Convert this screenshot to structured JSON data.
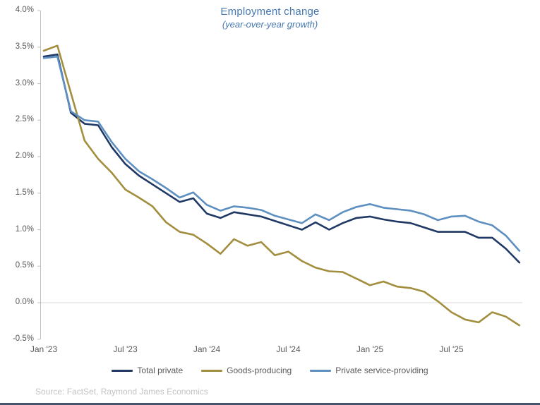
{
  "title": {
    "text": "Employment change",
    "subtitle": "(year-over-year growth)",
    "color": "#4679b2"
  },
  "source": "Source: FactSet, Raymond James Economics",
  "colors": {
    "axis_line": "#bfbfbf",
    "zero_gridline": "#d9d9d9",
    "tick_text": "#595959",
    "legend_text": "#595959",
    "source_text": "#c3c3c3",
    "bottom_bar": "#44546a"
  },
  "chart_data": {
    "type": "line",
    "title": "Employment change",
    "subtitle": "(year-over-year growth)",
    "ylabel": "",
    "xlabel": "",
    "ylim": [
      -0.5,
      4.0
    ],
    "y_tick_step": 0.5,
    "y_tick_labels": [
      "4.0%",
      "3.5%",
      "3.0%",
      "2.5%",
      "2.0%",
      "1.5%",
      "1.0%",
      "0.5%",
      "0.0%",
      "-0.5%"
    ],
    "x_axis_labels": [
      {
        "label": "Jan '23",
        "index": 0
      },
      {
        "label": "Jul '23",
        "index": 6
      },
      {
        "label": "Jan '24",
        "index": 12
      },
      {
        "label": "Jul '24",
        "index": 18
      },
      {
        "label": "Jan '25",
        "index": 24
      },
      {
        "label": "Jul '25",
        "index": 30
      }
    ],
    "categories": [
      "Jan '23",
      "Feb '23",
      "Mar '23",
      "Apr '23",
      "May '23",
      "Jun '23",
      "Jul '23",
      "Aug '23",
      "Sep '23",
      "Oct '23",
      "Nov '23",
      "Dec '23",
      "Jan '24",
      "Feb '24",
      "Mar '24",
      "Apr '24",
      "May '24",
      "Jun '24",
      "Jul '24",
      "Aug '24",
      "Sep '24",
      "Oct '24",
      "Nov '24",
      "Dec '24",
      "Jan '25",
      "Feb '25",
      "Mar '25",
      "Apr '25",
      "May '25",
      "Jun '25",
      "Jul '25",
      "Aug '25",
      "Sep '25",
      "Oct '25",
      "Nov '25",
      "Dec '25"
    ],
    "grid": "zero-line-only",
    "legend_position": "bottom",
    "series": [
      {
        "name": "Total private",
        "color": "#1f3864",
        "values": [
          3.37,
          3.4,
          2.6,
          2.45,
          2.43,
          2.13,
          1.9,
          1.74,
          1.62,
          1.5,
          1.38,
          1.43,
          1.22,
          1.16,
          1.24,
          1.21,
          1.18,
          1.12,
          1.06,
          1.0,
          1.1,
          1.0,
          1.09,
          1.16,
          1.18,
          1.14,
          1.11,
          1.09,
          1.03,
          0.97,
          0.97,
          0.97,
          0.89,
          0.89,
          0.74,
          0.55
        ]
      },
      {
        "name": "Goods-producing",
        "color": "#a28e3f",
        "values": [
          3.45,
          3.52,
          2.87,
          2.22,
          1.97,
          1.78,
          1.55,
          1.44,
          1.32,
          1.1,
          0.97,
          0.93,
          0.81,
          0.67,
          0.87,
          0.78,
          0.83,
          0.65,
          0.7,
          0.57,
          0.48,
          0.43,
          0.42,
          0.33,
          0.24,
          0.29,
          0.22,
          0.2,
          0.15,
          0.02,
          -0.13,
          -0.23,
          -0.27,
          -0.13,
          -0.19,
          -0.31
        ]
      },
      {
        "name": "Private service-providing",
        "color": "#5d8fc0",
        "values": [
          3.35,
          3.37,
          2.62,
          2.5,
          2.48,
          2.2,
          1.97,
          1.8,
          1.69,
          1.57,
          1.44,
          1.51,
          1.34,
          1.26,
          1.32,
          1.3,
          1.27,
          1.19,
          1.14,
          1.09,
          1.21,
          1.13,
          1.24,
          1.31,
          1.35,
          1.3,
          1.28,
          1.26,
          1.21,
          1.13,
          1.18,
          1.19,
          1.11,
          1.06,
          0.92,
          0.71
        ]
      }
    ]
  }
}
